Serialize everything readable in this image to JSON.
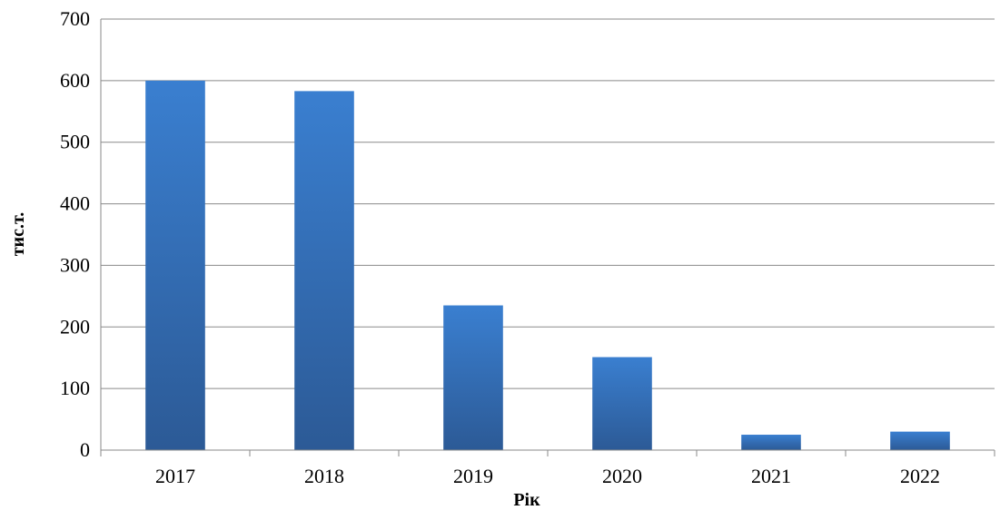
{
  "chart_data": {
    "type": "bar",
    "categories": [
      "2017",
      "2018",
      "2019",
      "2020",
      "2021",
      "2022"
    ],
    "values": [
      600,
      583,
      235,
      151,
      25,
      30
    ],
    "title": "",
    "xlabel": "Рік",
    "ylabel": "тис.т.",
    "ylim": [
      0,
      700
    ],
    "yticks": [
      0,
      100,
      200,
      300,
      400,
      500,
      600,
      700
    ],
    "grid": true,
    "legend": "none",
    "colors": {
      "bar_top": "#3a7fd0",
      "bar_bottom": "#2c5a96",
      "grid": "#8a8a8a",
      "axis": "#8a8a8a",
      "text": "#000000"
    }
  }
}
